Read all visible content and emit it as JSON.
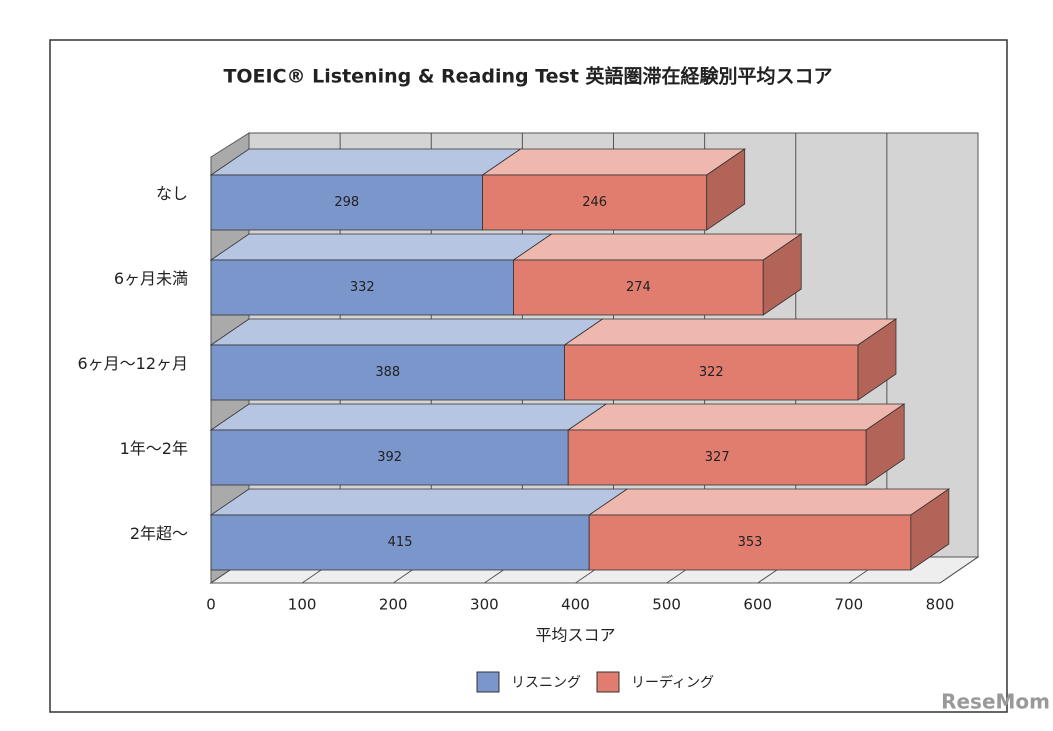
{
  "chart_data": {
    "type": "bar3d-stacked-horizontal",
    "title": "TOEIC® Listening & Reading Test 英語圏滞在経験別平均スコア",
    "categories": [
      "なし",
      "6ヶ月未満",
      "6ヶ月～12ヶ月",
      "1年～2年",
      "2年超～"
    ],
    "series": [
      {
        "name": "リスニング",
        "color": "#7b96cb",
        "values": [
          298,
          332,
          388,
          392,
          415
        ]
      },
      {
        "name": "リーディング",
        "color": "#e07d6e",
        "values": [
          246,
          274,
          322,
          327,
          353
        ]
      }
    ],
    "xlabel": "平均スコア",
    "xlim": [
      0,
      800
    ],
    "xticks": [
      0,
      100,
      200,
      300,
      400,
      500,
      600,
      700,
      800
    ],
    "grid": true,
    "legend": "bottom",
    "watermark": "ReseMom"
  }
}
